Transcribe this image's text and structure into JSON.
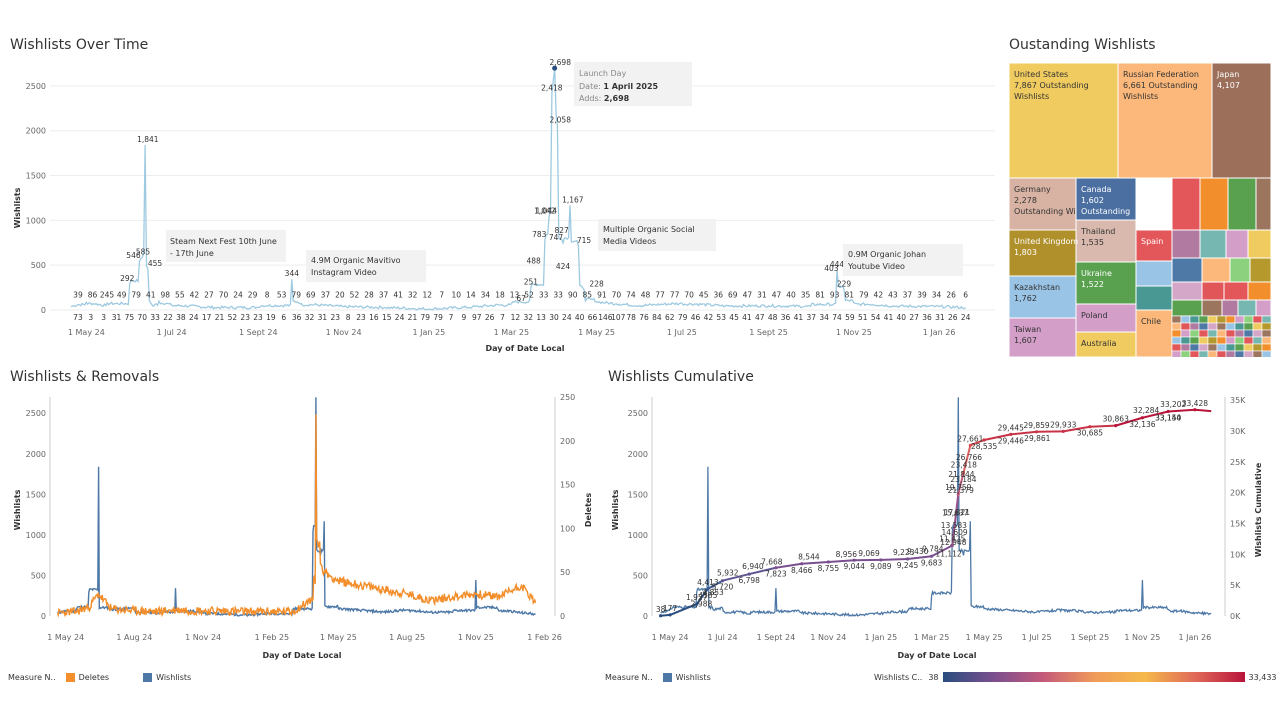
{
  "top_chart": {
    "title": "Wishlists Over Time",
    "y_axis_title": "Wishlists",
    "x_axis_title": "Day of Date Local",
    "y_ticks": [
      "0",
      "500",
      "1000",
      "1500",
      "2000",
      "2500"
    ],
    "x_ticks": [
      "1 May 24",
      "1 Jul 24",
      "1 Sept 24",
      "1 Nov 24",
      "1 Jan 25",
      "1 Mar 25",
      "1 May 25",
      "1 Jul 25",
      "1 Sept 25",
      "1 Nov 25",
      "1 Jan 26"
    ],
    "annotations": [
      {
        "line1": "Launch Day",
        "line2_label": "Date:",
        "line2_value": "1 April 2025",
        "line3_label": "Adds:",
        "line3_value": "2,698"
      },
      {
        "line1": "Steam Next Fest 10th June",
        "line2": "- 17th June"
      },
      {
        "line1": "4.9M Organic Mavitivo",
        "line2": "Instagram Video"
      },
      {
        "line1": "Multiple Organic Social",
        "line2": "Media Videos"
      },
      {
        "line1": "0.9M Organic Johan",
        "line2": "Youtube Video"
      }
    ],
    "point_labels": [
      "39",
      "86",
      "245",
      "49",
      "292",
      "546",
      "585",
      "1,841",
      "455",
      "79",
      "41",
      "98",
      "55",
      "42",
      "27",
      "70",
      "24",
      "29",
      "8",
      "53",
      "344",
      "79",
      "69",
      "37",
      "20",
      "52",
      "28",
      "37",
      "41",
      "32",
      "12",
      "7",
      "10",
      "14",
      "34",
      "18",
      "13",
      "52",
      "33",
      "33",
      "67",
      "251",
      "488",
      "783",
      "1,042",
      "1,044",
      "2,418",
      "2,698",
      "2,058",
      "827",
      "747",
      "1,167",
      "715",
      "424",
      "228",
      "90",
      "85",
      "91",
      "70",
      "74",
      "48",
      "77",
      "77",
      "70",
      "45",
      "36",
      "69",
      "47",
      "31",
      "47",
      "40",
      "35",
      "444",
      "403",
      "229",
      "81",
      "93",
      "81",
      "79",
      "42",
      "43",
      "37",
      "39",
      "34",
      "26",
      "6",
      "73",
      "3",
      "3",
      "31",
      "75",
      "70",
      "33",
      "22",
      "38",
      "24",
      "17",
      "21",
      "52",
      "23",
      "23",
      "19",
      "6",
      "36",
      "32",
      "31",
      "23",
      "8",
      "23",
      "16",
      "15",
      "24",
      "21",
      "79",
      "79",
      "7",
      "9",
      "97",
      "26",
      "7",
      "12",
      "32",
      "13",
      "30",
      "24",
      "40",
      "66",
      "146",
      "107",
      "78",
      "76",
      "84",
      "62",
      "79",
      "46",
      "42",
      "53",
      "45",
      "41",
      "47",
      "48",
      "36",
      "41",
      "37",
      "34",
      "74",
      "59",
      "51",
      "54",
      "41",
      "40",
      "27",
      "36",
      "31",
      "26",
      "24"
    ]
  },
  "treemap": {
    "title": "Oustanding Wishlists",
    "cells": [
      {
        "country": "United States",
        "value": "7,867 Outstanding",
        "sub": "Wishlists",
        "color": "#f0cb5f"
      },
      {
        "country": "Russian Federation",
        "value": "6,661 Outstanding",
        "sub": "Wishlists",
        "color": "#fbb87a"
      },
      {
        "country": "Japan",
        "value": "4,107",
        "sub": "",
        "color": "#9b6f5a"
      },
      {
        "country": "Germany",
        "value": "2,278",
        "sub": "Outstanding Wishlists",
        "color": "#d8b3a4"
      },
      {
        "country": "Canada",
        "value": "1,602",
        "sub": "Outstanding",
        "color": "#4a6fa0"
      },
      {
        "country": "Thailand",
        "value": "1,535",
        "sub": "",
        "color": "#d9b9ad"
      },
      {
        "country": "United Kingdom",
        "value": "1,803",
        "sub": "",
        "color": "#b0902a"
      },
      {
        "country": "Ukraine",
        "value": "1,522",
        "sub": "",
        "color": "#59a14f"
      },
      {
        "country": "Kazakhstan",
        "value": "1,762",
        "sub": "",
        "color": "#9ac4e6"
      },
      {
        "country": "Poland",
        "value": "",
        "sub": "",
        "color": "#d39ec8"
      },
      {
        "country": "Taiwan",
        "value": "1,607",
        "sub": "",
        "color": "#d39ec8"
      },
      {
        "country": "Australia",
        "value": "",
        "sub": "",
        "color": "#f0cb5f"
      },
      {
        "country": "Spain",
        "value": "",
        "sub": "",
        "color": "#e3575a"
      },
      {
        "country": "Chile",
        "value": "",
        "sub": "",
        "color": "#fbb87a"
      }
    ]
  },
  "mid_left": {
    "title": "Wishlists & Removals",
    "y_axis_title": "Wishlists",
    "y2_axis_title": "Deletes",
    "x_axis_title": "Day of Date Local",
    "y_ticks": [
      "0",
      "500",
      "1000",
      "1500",
      "2000",
      "2500"
    ],
    "y2_ticks": [
      "0",
      "50",
      "100",
      "150",
      "200",
      "250"
    ],
    "x_ticks": [
      "1 May 24",
      "1 Aug 24",
      "1 Nov 24",
      "1 Feb 25",
      "1 May 25",
      "1 Aug 25",
      "1 Nov 25",
      "1 Feb 26"
    ],
    "legend_title": "Measure N..",
    "legend": [
      {
        "name": "Deletes",
        "color": "#f28e2b"
      },
      {
        "name": "Wishlists",
        "color": "#4e79a7"
      }
    ]
  },
  "mid_right": {
    "title": "Wishlists Cumulative",
    "y_axis_title": "Wishlists",
    "y2_axis_title": "Wishlists Cumulative",
    "x_axis_title": "Day of Date Local",
    "y_ticks": [
      "0",
      "500",
      "1000",
      "1500",
      "2000",
      "2500"
    ],
    "y2_ticks": [
      "0K",
      "5K",
      "10K",
      "15K",
      "20K",
      "25K",
      "30K",
      "35K"
    ],
    "x_ticks": [
      "1 May 24",
      "1 Jul 24",
      "1 Sept 24",
      "1 Nov 24",
      "1 Jan 25",
      "1 Mar 25",
      "1 May 25",
      "1 Jul 25",
      "1 Sept 25",
      "1 Nov 25",
      "1 Jan 26"
    ],
    "cum_labels": [
      "38",
      "4385",
      "177",
      "2,988",
      "1,927",
      "4,853",
      "4,413",
      "5,720",
      "5,932",
      "6,798",
      "6,940",
      "7,823",
      "7,668",
      "8,466",
      "8,544",
      "8,755",
      "8,956",
      "9,044",
      "9,069",
      "9,089",
      "9,223",
      "9,245",
      "9,430",
      "9,683",
      "9,784",
      "11,112",
      "11,425",
      "12,948",
      "13,583",
      "14,609",
      "15,637",
      "17,821",
      "19,759",
      "21,379",
      "21,844",
      "23,184",
      "23,418",
      "26,766",
      "27,661",
      "28,535",
      "29,445",
      "29,446",
      "29,859",
      "29,861",
      "29,933",
      "30,685",
      "30,863",
      "32,136",
      "32,284",
      "33,150",
      "33,428",
      "33,144",
      "33,202"
    ],
    "legend_title": "Measure N..",
    "legend": [
      {
        "name": "Wishlists",
        "color": "#4e79a7"
      }
    ],
    "gradient_title": "Wishlists C..",
    "gradient_min": "38",
    "gradient_max": "33,433"
  },
  "chart_data": [
    {
      "type": "line",
      "title": "Wishlists Over Time",
      "xlabel": "Day of Date Local",
      "ylabel": "Wishlists",
      "ylim": [
        0,
        2700
      ],
      "x": [
        "2024-04-20",
        "2024-05-01",
        "2024-05-15",
        "2024-06-01",
        "2024-06-08",
        "2024-06-10",
        "2024-06-12",
        "2024-06-14",
        "2024-06-16",
        "2024-06-18",
        "2024-06-22",
        "2024-07-01",
        "2024-08-01",
        "2024-09-01",
        "2024-09-25",
        "2024-10-01",
        "2024-11-01",
        "2024-12-01",
        "2025-01-01",
        "2025-02-01",
        "2025-03-01",
        "2025-03-15",
        "2025-03-25",
        "2025-03-28",
        "2025-03-30",
        "2025-04-01",
        "2025-04-03",
        "2025-04-07",
        "2025-04-12",
        "2025-04-18",
        "2025-04-22",
        "2025-05-01",
        "2025-05-15",
        "2025-06-01",
        "2025-07-01",
        "2025-08-01",
        "2025-09-01",
        "2025-10-01",
        "2025-10-20",
        "2025-10-25",
        "2025-11-01",
        "2025-12-01",
        "2026-01-01",
        "2026-01-20"
      ],
      "series": [
        {
          "values": [
            39,
            86,
            49,
            292,
            546,
            585,
            1841,
            455,
            79,
            41,
            98,
            55,
            27,
            29,
            344,
            69,
            37,
            28,
            10,
            33,
            67,
            251,
            783,
            1044,
            2418,
            2698,
            2058,
            747,
            1167,
            715,
            228,
            91,
            70,
            48,
            77,
            45,
            47,
            40,
            444,
            229,
            81,
            42,
            39,
            26
          ]
        }
      ]
    },
    {
      "type": "treemap",
      "title": "Oustanding Wishlists",
      "categories": [
        "United States",
        "Russian Federation",
        "Japan",
        "Germany",
        "United Kingdom",
        "Kazakhstan",
        "Taiwan",
        "Canada",
        "Thailand",
        "Ukraine"
      ],
      "values": [
        7867,
        6661,
        4107,
        2278,
        1803,
        1762,
        1607,
        1602,
        1535,
        1522
      ]
    },
    {
      "type": "line",
      "title": "Wishlists & Removals",
      "xlabel": "Day of Date Local",
      "ylabel": "Wishlists",
      "y2label": "Deletes",
      "ylim": [
        0,
        2700
      ],
      "y2lim": [
        0,
        250
      ],
      "x": [
        "2024-04-20",
        "2024-05-15",
        "2024-06-01",
        "2024-06-14",
        "2024-07-01",
        "2024-08-01",
        "2024-09-01",
        "2024-09-25",
        "2024-11-01",
        "2025-01-01",
        "2025-03-01",
        "2025-03-28",
        "2025-04-01",
        "2025-04-07",
        "2025-04-12",
        "2025-05-01",
        "2025-06-01",
        "2025-07-01",
        "2025-08-01",
        "2025-09-01",
        "2025-10-01",
        "2025-11-01",
        "2025-12-01",
        "2026-01-01",
        "2026-01-20"
      ],
      "series": [
        {
          "name": "Deletes",
          "values": [
            3,
            5,
            10,
            25,
            8,
            6,
            5,
            7,
            6,
            5,
            5,
            20,
            230,
            60,
            50,
            40,
            35,
            30,
            25,
            18,
            22,
            25,
            22,
            35,
            15
          ]
        },
        {
          "name": "Wishlists",
          "values": [
            39,
            86,
            292,
            1841,
            79,
            98,
            27,
            344,
            37,
            10,
            67,
            1044,
            2698,
            747,
            1167,
            91,
            70,
            48,
            77,
            45,
            47,
            444,
            81,
            39,
            26
          ]
        }
      ]
    },
    {
      "type": "line",
      "title": "Wishlists Cumulative",
      "xlabel": "Day of Date Local",
      "ylabel": "Wishlists",
      "y2label": "Wishlists Cumulative",
      "ylim": [
        0,
        2700
      ],
      "y2lim": [
        0,
        35000
      ],
      "x": [
        "2024-04-20",
        "2024-05-01",
        "2024-06-01",
        "2024-06-14",
        "2024-06-20",
        "2024-07-01",
        "2024-08-01",
        "2024-09-01",
        "2024-10-01",
        "2024-11-01",
        "2024-12-01",
        "2025-01-01",
        "2025-02-01",
        "2025-03-01",
        "2025-03-25",
        "2025-04-01",
        "2025-04-07",
        "2025-04-15",
        "2025-05-01",
        "2025-06-01",
        "2025-07-01",
        "2025-08-01",
        "2025-09-01",
        "2025-10-01",
        "2025-11-01",
        "2025-12-01",
        "2026-01-01",
        "2026-01-20"
      ],
      "series": [
        {
          "name": "Wishlists Cumulative",
          "values": [
            38,
            177,
            1927,
            4413,
            4853,
            5720,
            6798,
            7823,
            8466,
            8755,
            9044,
            9089,
            9245,
            9683,
            11425,
            19759,
            23184,
            27661,
            28535,
            29445,
            29859,
            29933,
            30685,
            30863,
            32136,
            33150,
            33428,
            33202
          ]
        },
        {
          "name": "Wishlists",
          "values": [
            39,
            86,
            292,
            1841,
            79,
            98,
            27,
            344,
            37,
            28,
            10,
            33,
            67,
            251,
            1044,
            2698,
            747,
            1167,
            91,
            70,
            48,
            77,
            45,
            47,
            444,
            81,
            39,
            26
          ]
        }
      ]
    }
  ]
}
